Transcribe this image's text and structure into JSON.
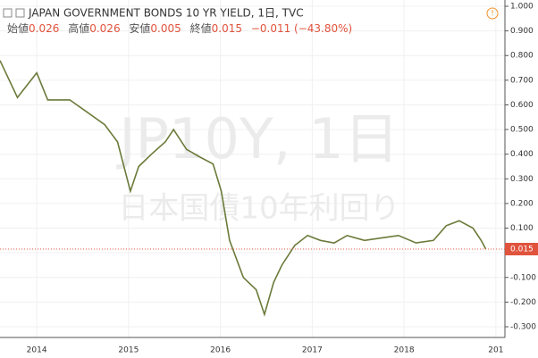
{
  "chart_data": {
    "type": "line",
    "title": "JAPAN GOVERNMENT BONDS 10 YR YIELD, 1日, TVC",
    "ohlc": {
      "open_label": "始値",
      "open": 0.026,
      "high_label": "高値",
      "high": 0.026,
      "low_label": "安値",
      "low": 0.005,
      "close_label": "終値",
      "close": 0.015,
      "change_text": "−0.011 (−43.80%)"
    },
    "watermark": [
      "JP10Y, 1日",
      "日本国債10年利回り"
    ],
    "x": [
      2013.6,
      2013.79,
      2014.0,
      2014.12,
      2014.36,
      2014.55,
      2014.74,
      2014.88,
      2015.02,
      2015.11,
      2015.25,
      2015.4,
      2015.49,
      2015.63,
      2015.77,
      2015.92,
      2016.01,
      2016.1,
      2016.25,
      2016.39,
      2016.48,
      2016.58,
      2016.67,
      2016.81,
      2016.95,
      2017.09,
      2017.24,
      2017.38,
      2017.57,
      2017.75,
      2017.94,
      2018.13,
      2018.32,
      2018.46,
      2018.6,
      2018.75,
      2018.84,
      2018.89
    ],
    "values": [
      0.78,
      0.63,
      0.73,
      0.62,
      0.62,
      0.57,
      0.52,
      0.45,
      0.25,
      0.35,
      0.4,
      0.45,
      0.5,
      0.42,
      0.39,
      0.36,
      0.25,
      0.05,
      -0.1,
      -0.15,
      -0.25,
      -0.12,
      -0.05,
      0.03,
      0.07,
      0.05,
      0.04,
      0.07,
      0.05,
      0.06,
      0.07,
      0.04,
      0.05,
      0.11,
      0.13,
      0.1,
      0.05,
      0.015
    ],
    "color": "#6b7a3a",
    "xlim": [
      2013.6,
      2019.05
    ],
    "xticks": [
      2014,
      2015,
      2016,
      2017,
      2018,
      {
        "value": 2019,
        "label": "201"
      }
    ],
    "ylim": [
      -0.3,
      1.0
    ],
    "yticks": [
      {
        "value": 1.0,
        "label": "1.000"
      },
      {
        "value": 0.9,
        "label": "0.900"
      },
      {
        "value": 0.8,
        "label": "0.800"
      },
      {
        "value": 0.7,
        "label": "0.700"
      },
      {
        "value": 0.6,
        "label": "0.600"
      },
      {
        "value": 0.5,
        "label": "0.500"
      },
      {
        "value": 0.4,
        "label": "0.400"
      },
      {
        "value": 0.3,
        "label": "0.300"
      },
      {
        "value": 0.2,
        "label": "0.200"
      },
      {
        "value": 0.1,
        "label": "0.100"
      },
      {
        "value": 0,
        "label": "0.000"
      },
      {
        "value": -0.1,
        "label": "-0.100"
      },
      {
        "value": -0.2,
        "label": "-0.200"
      },
      {
        "value": -0.3,
        "label": "-0.300"
      }
    ],
    "grid": true,
    "last_color": "#e0533d"
  }
}
